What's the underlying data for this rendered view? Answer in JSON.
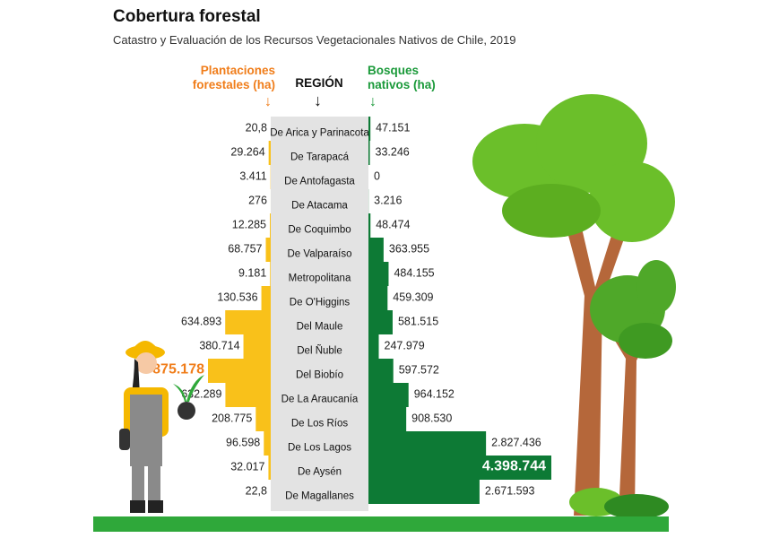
{
  "title": "Cobertura forestal",
  "subtitle": "Catastro y Evaluación de los Recursos Vegetacionales Nativos de Chile, 2019",
  "headers": {
    "left": [
      "Plantaciones",
      "forestales (ha)"
    ],
    "middle": "REGIÓN",
    "right": [
      "Bosques",
      "nativos (ha)"
    ]
  },
  "colors": {
    "plantaciones": "#f9c11a",
    "bosques": "#0d7a35",
    "region_band": "#e3e3e3",
    "highlight_text": "#f07d1a",
    "left_header": "#f07d1a",
    "right_header": "#1b9a3a",
    "ground": "#2fa83a"
  },
  "chart_data": {
    "type": "bar",
    "categories": [
      "De Arica y Parinacota",
      "De Tarapacá",
      "De Antofagasta",
      "De Atacama",
      "De Coquimbo",
      "De Valparaíso",
      "Metropolitana",
      "De O'Higgins",
      "Del Maule",
      "Del Ñuble",
      "Del Biobío",
      "De La Araucanía",
      "De Los Ríos",
      "De Los Lagos",
      "De Aysén",
      "De Magallanes"
    ],
    "series": [
      {
        "name": "Plantaciones forestales (ha)",
        "values": [
          20.8,
          29264,
          3411,
          276,
          12285,
          68757,
          9181,
          130536,
          634893,
          380714,
          875178,
          632289,
          208775,
          96598,
          32017,
          22.8
        ],
        "labels": [
          "20,8",
          "29.264",
          "3.411",
          "276",
          "12.285",
          "68.757",
          "9.181",
          "130.536",
          "634.893",
          "380.714",
          "875.178",
          "632.289",
          "208.775",
          "96.598",
          "32.017",
          "22,8"
        ],
        "highlight_index": 10
      },
      {
        "name": "Bosques nativos (ha)",
        "values": [
          47151,
          33246,
          0,
          3216,
          48474,
          363955,
          484155,
          459309,
          581515,
          247979,
          597572,
          964152,
          908530,
          2827436,
          4398744,
          2671593
        ],
        "labels": [
          "47.151",
          "33.246",
          "0",
          "3.216",
          "48.474",
          "363.955",
          "484.155",
          "459.309",
          "581.515",
          "247.979",
          "597.572",
          "964.152",
          "908.530",
          "2.827.436",
          "4.398.744",
          "2.671.593"
        ],
        "highlight_index": 14
      }
    ],
    "orientation": "diverging-horizontal",
    "title": "Cobertura forestal",
    "subtitle": "Catastro y Evaluación de los Recursos Vegetacionales Nativos de Chile, 2019"
  }
}
